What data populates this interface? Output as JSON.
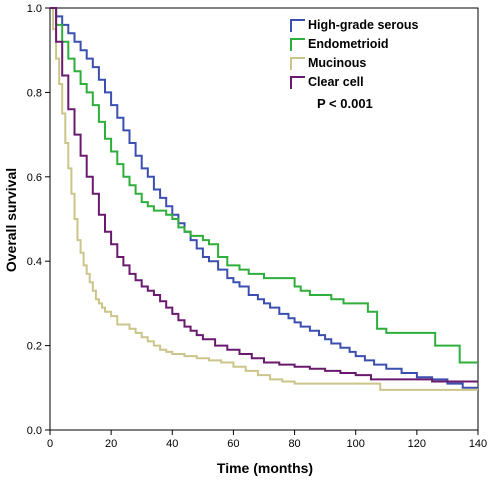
{
  "chart_data": {
    "type": "line",
    "step": true,
    "xlabel": "Time (months)",
    "ylabel": "Overall survival",
    "xlim": [
      0,
      140
    ],
    "ylim": [
      0,
      1.0
    ],
    "xticks": [
      0,
      20,
      40,
      60,
      80,
      100,
      120,
      140
    ],
    "yticks": [
      0.0,
      0.2,
      0.4,
      0.6,
      0.8,
      1.0
    ],
    "ytick_labels": [
      "0.0",
      "0.2",
      "0.4",
      "0.6",
      "0.8",
      "1.0"
    ],
    "grid": false,
    "legend_position": "top-right",
    "annotation": "P < 0.001",
    "series": [
      {
        "name": "High-grade serous",
        "color": "#3a4fb0",
        "x": [
          0,
          2,
          4,
          6,
          8,
          10,
          12,
          14,
          16,
          18,
          20,
          22,
          24,
          26,
          28,
          30,
          32,
          34,
          36,
          38,
          40,
          42,
          44,
          46,
          48,
          50,
          52,
          55,
          58,
          60,
          62,
          65,
          68,
          70,
          72,
          75,
          78,
          80,
          82,
          85,
          88,
          90,
          92,
          95,
          98,
          100,
          103,
          106,
          110,
          115,
          120,
          125,
          130,
          135,
          140
        ],
        "y": [
          1.0,
          0.98,
          0.96,
          0.94,
          0.92,
          0.9,
          0.88,
          0.86,
          0.83,
          0.8,
          0.77,
          0.74,
          0.71,
          0.68,
          0.65,
          0.62,
          0.6,
          0.57,
          0.55,
          0.53,
          0.51,
          0.49,
          0.47,
          0.45,
          0.43,
          0.41,
          0.4,
          0.38,
          0.36,
          0.35,
          0.34,
          0.32,
          0.31,
          0.3,
          0.29,
          0.275,
          0.265,
          0.255,
          0.245,
          0.235,
          0.225,
          0.215,
          0.205,
          0.195,
          0.185,
          0.175,
          0.165,
          0.155,
          0.145,
          0.135,
          0.125,
          0.12,
          0.11,
          0.1,
          0.1
        ]
      },
      {
        "name": "Endometrioid",
        "color": "#2eae3a",
        "x": [
          0,
          2,
          4,
          6,
          8,
          10,
          12,
          14,
          16,
          18,
          20,
          22,
          24,
          26,
          28,
          30,
          32,
          34,
          36,
          38,
          40,
          42,
          44,
          46,
          48,
          50,
          52,
          55,
          58,
          62,
          65,
          68,
          70,
          75,
          80,
          82,
          85,
          88,
          92,
          96,
          100,
          104,
          107,
          110,
          116,
          122,
          126,
          130,
          134,
          140
        ],
        "y": [
          1.0,
          0.96,
          0.92,
          0.88,
          0.85,
          0.82,
          0.8,
          0.77,
          0.73,
          0.69,
          0.66,
          0.63,
          0.6,
          0.58,
          0.56,
          0.54,
          0.53,
          0.52,
          0.52,
          0.51,
          0.5,
          0.48,
          0.47,
          0.46,
          0.46,
          0.45,
          0.44,
          0.41,
          0.39,
          0.38,
          0.37,
          0.37,
          0.36,
          0.36,
          0.34,
          0.33,
          0.32,
          0.32,
          0.31,
          0.3,
          0.3,
          0.28,
          0.24,
          0.23,
          0.23,
          0.23,
          0.2,
          0.2,
          0.16,
          0.16
        ]
      },
      {
        "name": "Mucinous",
        "color": "#cbc58a",
        "x": [
          0,
          1,
          2,
          3,
          4,
          5,
          6,
          7,
          8,
          9,
          10,
          11,
          12,
          13,
          14,
          15,
          16,
          17,
          18,
          20,
          22,
          24,
          26,
          28,
          30,
          32,
          34,
          36,
          38,
          40,
          44,
          48,
          52,
          56,
          60,
          64,
          68,
          72,
          76,
          80,
          90,
          100,
          108,
          120,
          130,
          140
        ],
        "y": [
          1.0,
          0.95,
          0.88,
          0.82,
          0.75,
          0.68,
          0.62,
          0.56,
          0.5,
          0.45,
          0.42,
          0.39,
          0.37,
          0.35,
          0.33,
          0.31,
          0.3,
          0.29,
          0.28,
          0.27,
          0.25,
          0.25,
          0.24,
          0.23,
          0.22,
          0.21,
          0.2,
          0.19,
          0.185,
          0.18,
          0.175,
          0.17,
          0.165,
          0.16,
          0.15,
          0.14,
          0.13,
          0.12,
          0.115,
          0.11,
          0.11,
          0.11,
          0.095,
          0.095,
          0.095,
          0.095
        ]
      },
      {
        "name": "Clear cell",
        "color": "#6a1a6e",
        "x": [
          0,
          2,
          4,
          6,
          8,
          10,
          12,
          14,
          16,
          18,
          20,
          22,
          24,
          26,
          28,
          30,
          32,
          34,
          36,
          38,
          40,
          42,
          44,
          46,
          48,
          50,
          54,
          58,
          62,
          66,
          70,
          75,
          80,
          85,
          90,
          95,
          100,
          105,
          110,
          115,
          120,
          125,
          130,
          135,
          140
        ],
        "y": [
          1.0,
          0.92,
          0.84,
          0.76,
          0.7,
          0.65,
          0.6,
          0.56,
          0.51,
          0.47,
          0.44,
          0.41,
          0.39,
          0.37,
          0.355,
          0.34,
          0.33,
          0.32,
          0.305,
          0.29,
          0.275,
          0.26,
          0.245,
          0.235,
          0.225,
          0.215,
          0.2,
          0.19,
          0.18,
          0.17,
          0.16,
          0.155,
          0.15,
          0.145,
          0.14,
          0.135,
          0.13,
          0.12,
          0.12,
          0.12,
          0.12,
          0.115,
          0.115,
          0.115,
          0.115
        ]
      }
    ]
  }
}
